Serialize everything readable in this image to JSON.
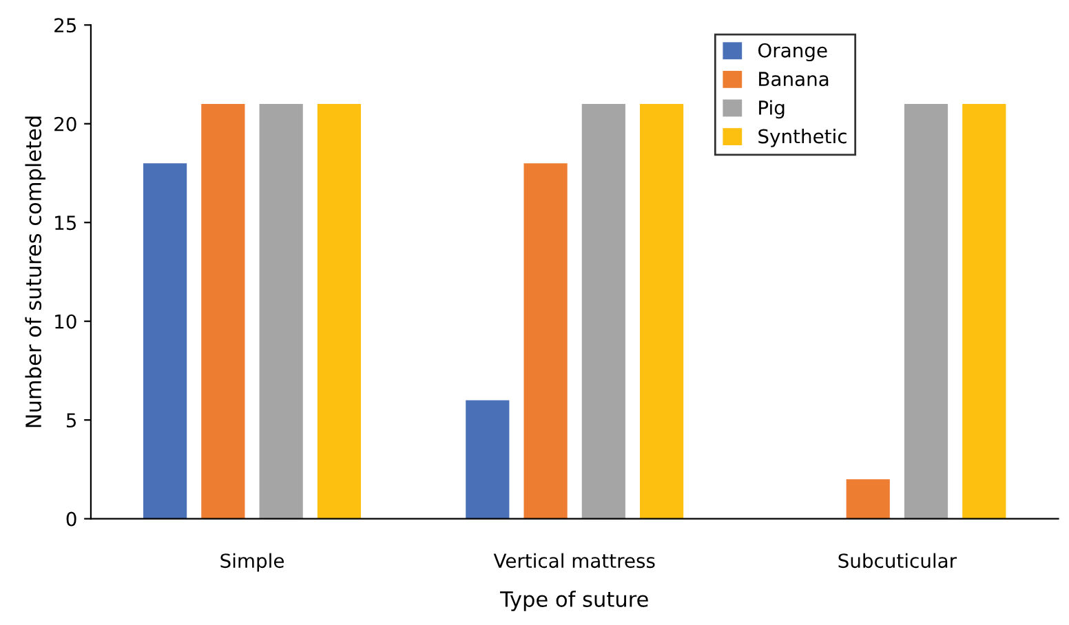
{
  "chart_data": {
    "type": "bar",
    "xlabel": "Type of suture",
    "ylabel": "Number of sutures completed",
    "categories": [
      "Simple",
      "Vertical mattress",
      "Subcuticular"
    ],
    "series": [
      {
        "name": "Orange",
        "color": "#4a71b8",
        "values": [
          18,
          6,
          0
        ]
      },
      {
        "name": "Banana",
        "color": "#ed7d31",
        "values": [
          21,
          18,
          2
        ]
      },
      {
        "name": "Pig",
        "color": "#a5a5a5",
        "values": [
          21,
          21,
          21
        ]
      },
      {
        "name": "Synthetic",
        "color": "#fdc010",
        "values": [
          21,
          21,
          21
        ]
      }
    ],
    "ylim": [
      0,
      25
    ],
    "yticks": [
      0,
      5,
      10,
      15,
      20,
      25
    ],
    "grid": false,
    "legend": "top right"
  }
}
